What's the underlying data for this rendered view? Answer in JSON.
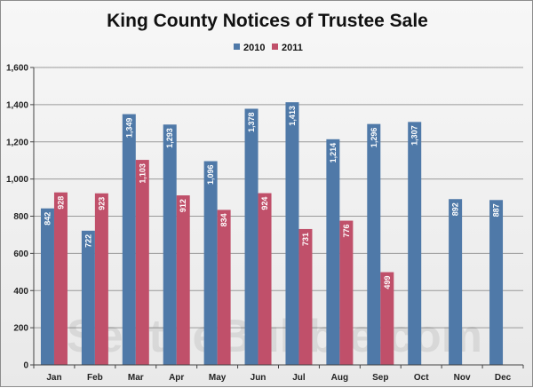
{
  "chart_data": {
    "type": "bar",
    "title": "King County Notices of Trustee Sale",
    "categories": [
      "Jan",
      "Feb",
      "Mar",
      "Apr",
      "May",
      "Jun",
      "Jul",
      "Aug",
      "Sep",
      "Oct",
      "Nov",
      "Dec"
    ],
    "series": [
      {
        "name": "2010",
        "color": "#4f79a8",
        "values": [
          842,
          722,
          1349,
          1293,
          1096,
          1378,
          1413,
          1214,
          1296,
          1307,
          892,
          887
        ],
        "labels": [
          "842",
          "722",
          "1,349",
          "1,293",
          "1,096",
          "1,378",
          "1,413",
          "1,214",
          "1,296",
          "1,307",
          "892",
          "887"
        ]
      },
      {
        "name": "2011",
        "color": "#c0506a",
        "values": [
          928,
          923,
          1103,
          912,
          834,
          924,
          731,
          776,
          499,
          null,
          null,
          null
        ],
        "labels": [
          "928",
          "923",
          "1,103",
          "912",
          "834",
          "924",
          "731",
          "776",
          "499",
          "",
          "",
          ""
        ]
      }
    ],
    "yticks": [
      "0",
      "200",
      "400",
      "600",
      "800",
      "1,000",
      "1,200",
      "1,400",
      "1,600"
    ],
    "ylim": [
      0,
      1600
    ],
    "grid": true,
    "legend": "top-center"
  },
  "watermark": "SeattleBubble.com"
}
